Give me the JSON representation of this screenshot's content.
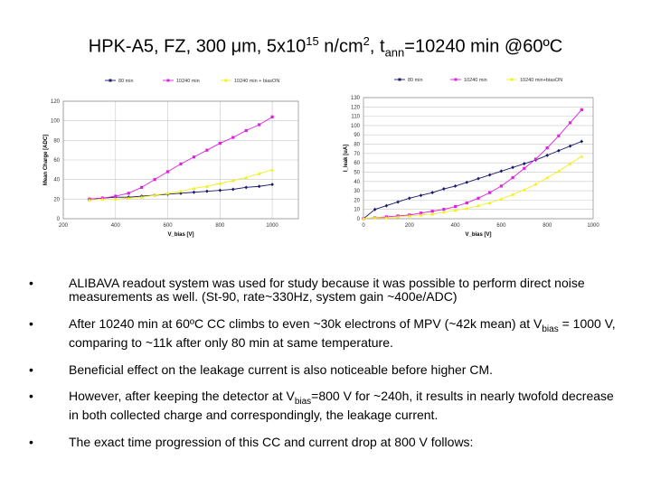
{
  "title": {
    "prefix": "HPK-A5, FZ, 300 μm, 5x10",
    "exp": "15",
    "mid": " n/cm",
    "exp2": "2",
    "mid2": ", t",
    "sub": "ann",
    "suffix": "=10240 min @60ºC"
  },
  "colors": {
    "navy": "#1a1a6e",
    "magenta": "#dd22dd",
    "yellow": "#f0f020"
  },
  "chart_data": [
    {
      "type": "line",
      "title": "",
      "xlabel": "V_bias [V]",
      "ylabel": "Mean Charge [ADC]",
      "xlim": [
        200,
        1100
      ],
      "ylim": [
        0,
        120
      ],
      "xticks": [
        200,
        400,
        600,
        800,
        1000
      ],
      "yticks": [
        0,
        20,
        40,
        60,
        80,
        100,
        120
      ],
      "grid": true,
      "legend": "top",
      "series": [
        {
          "name": "80 min",
          "color": "#1a1a6e",
          "marker": "diamond",
          "x": [
            300,
            350,
            400,
            450,
            500,
            550,
            600,
            650,
            700,
            750,
            800,
            850,
            900,
            950,
            1000
          ],
          "y": [
            20,
            21,
            22,
            22,
            23,
            24,
            25,
            26,
            27,
            28,
            29,
            30,
            32,
            33,
            35
          ]
        },
        {
          "name": "10240 min",
          "color": "#dd22dd",
          "marker": "square",
          "x": [
            300,
            350,
            400,
            450,
            500,
            550,
            600,
            650,
            700,
            750,
            800,
            850,
            900,
            950,
            1000
          ],
          "y": [
            20,
            21,
            23,
            26,
            32,
            40,
            48,
            56,
            63,
            70,
            77,
            83,
            90,
            96,
            104
          ]
        },
        {
          "name": "10240 min + biasON",
          "color": "#f0f020",
          "marker": "triangle",
          "x": [
            300,
            350,
            400,
            450,
            500,
            550,
            600,
            650,
            700,
            750,
            800,
            850,
            900,
            950,
            1000
          ],
          "y": [
            19,
            20,
            20,
            21,
            22,
            24,
            26,
            28,
            31,
            33,
            36,
            39,
            42,
            46,
            50
          ]
        }
      ]
    },
    {
      "type": "line",
      "title": "",
      "xlabel": "V_bias [V]",
      "ylabel": "I_leak [uA]",
      "xlim": [
        0,
        1000
      ],
      "ylim": [
        0,
        130
      ],
      "xticks": [
        0,
        200,
        400,
        600,
        800,
        1000
      ],
      "yticks": [
        0,
        10,
        20,
        30,
        40,
        50,
        60,
        70,
        80,
        90,
        100,
        110,
        120,
        130
      ],
      "grid": true,
      "legend": "top",
      "series": [
        {
          "name": "80 min",
          "color": "#1a1a6e",
          "marker": "diamond",
          "x": [
            0,
            50,
            100,
            150,
            200,
            250,
            300,
            350,
            400,
            450,
            500,
            550,
            600,
            650,
            700,
            750,
            800,
            850,
            900,
            950
          ],
          "y": [
            0,
            10,
            14,
            18,
            22,
            25,
            28,
            32,
            35,
            39,
            43,
            47,
            51,
            55,
            59,
            63,
            68,
            73,
            78,
            83
          ]
        },
        {
          "name": "10240 min",
          "color": "#dd22dd",
          "marker": "square",
          "x": [
            0,
            50,
            100,
            150,
            200,
            250,
            300,
            350,
            400,
            450,
            500,
            550,
            600,
            650,
            700,
            750,
            800,
            850,
            900,
            950
          ],
          "y": [
            0,
            1,
            2,
            3,
            4,
            6,
            8,
            10,
            13,
            17,
            22,
            28,
            35,
            44,
            54,
            64,
            76,
            89,
            103,
            117
          ]
        },
        {
          "name": "10240 min+biasON",
          "color": "#f0f020",
          "marker": "triangle",
          "x": [
            0,
            50,
            100,
            150,
            200,
            250,
            300,
            350,
            400,
            450,
            500,
            550,
            600,
            650,
            700,
            750,
            800,
            850,
            900,
            950
          ],
          "y": [
            0,
            1,
            1,
            2,
            3,
            4,
            5,
            7,
            9,
            11,
            14,
            17,
            21,
            26,
            31,
            37,
            44,
            51,
            59,
            67
          ]
        }
      ]
    }
  ],
  "bullets": [
    {
      "marker": "•",
      "text": "ALIBAVA readout system was used for study because it was possible to perform direct noise measurements as well. (St-90, rate~330Hz, system gain ~400e/ADC)"
    },
    {
      "marker": "•",
      "before": "After 10240 min at 60ºC CC climbs to even ~30k electrons of MPV (~42k mean) at V",
      "sub": "bias",
      "after": " = 1000 V, comparing to ~11k after only 80 min at same temperature."
    },
    {
      "marker": "•",
      "text": "Beneficial effect on the leakage current is also noticeable before higher CM."
    },
    {
      "marker": "•",
      "before": "However, after keeping the detector at V",
      "sub": "bias",
      "after": "=800 V for ~240h, it results in nearly twofold decrease in both collected charge and correspondingly, the leakage current."
    },
    {
      "marker": "•",
      "text": "The exact time progression of this CC and current drop at 800 V follows:"
    }
  ]
}
